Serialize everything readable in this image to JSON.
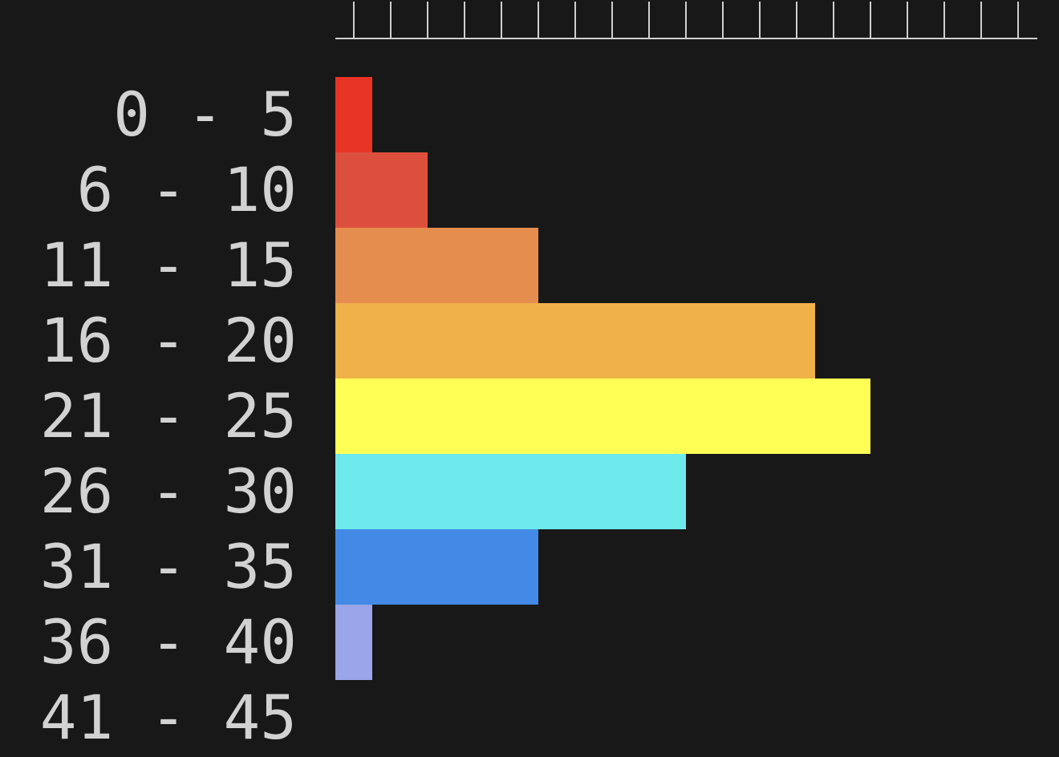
{
  "chart_data": {
    "type": "bar",
    "orientation": "horizontal",
    "categories": [
      "0 - 5",
      "6 - 10",
      "11 - 15",
      "16 - 20",
      "21 - 25",
      "26 - 30",
      "31 - 35",
      "36 - 40",
      "41 - 45"
    ],
    "values": [
      1,
      2.5,
      5.5,
      13,
      14.5,
      9.5,
      5.5,
      1,
      0
    ],
    "colors": [
      "#e83425",
      "#dd4f3d",
      "#e58d4e",
      "#f0b148",
      "#ffff55",
      "#6deaec",
      "#428ae6",
      "#9aa5ea",
      "#181818"
    ],
    "xlim": [
      0,
      19
    ],
    "x_ticks": [
      0.5,
      1.5,
      2.5,
      3.5,
      4.5,
      5.5,
      6.5,
      7.5,
      8.5,
      9.5,
      10.5,
      11.5,
      12.5,
      13.5,
      14.5,
      15.5,
      16.5,
      17.5,
      18.5
    ],
    "axis_position": "top",
    "grid": false,
    "legend": "none",
    "title": "",
    "xlabel": "",
    "ylabel": "",
    "background": "#181818",
    "axis_color": "#cfcfcf",
    "label_color": "#d2d2d2"
  }
}
